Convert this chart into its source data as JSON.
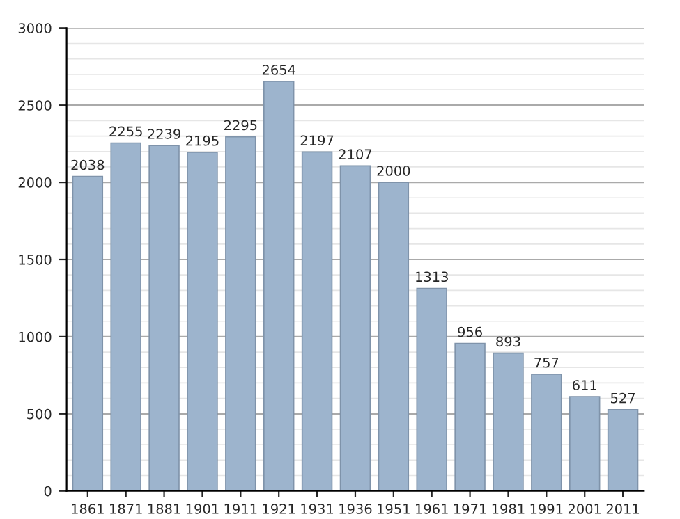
{
  "chart_data": {
    "type": "bar",
    "categories": [
      "1861",
      "1871",
      "1881",
      "1901",
      "1911",
      "1921",
      "1931",
      "1936",
      "1951",
      "1961",
      "1971",
      "1981",
      "1991",
      "2001",
      "2011"
    ],
    "values": [
      2038,
      2255,
      2239,
      2195,
      2295,
      2654,
      2197,
      2107,
      2000,
      1313,
      956,
      893,
      757,
      611,
      527
    ],
    "color": "#9db4cd",
    "ylim": [
      0,
      3000
    ],
    "yticks": [
      0,
      500,
      1000,
      1500,
      2000,
      2500,
      3000
    ],
    "grid": "y",
    "data_labels": true
  }
}
